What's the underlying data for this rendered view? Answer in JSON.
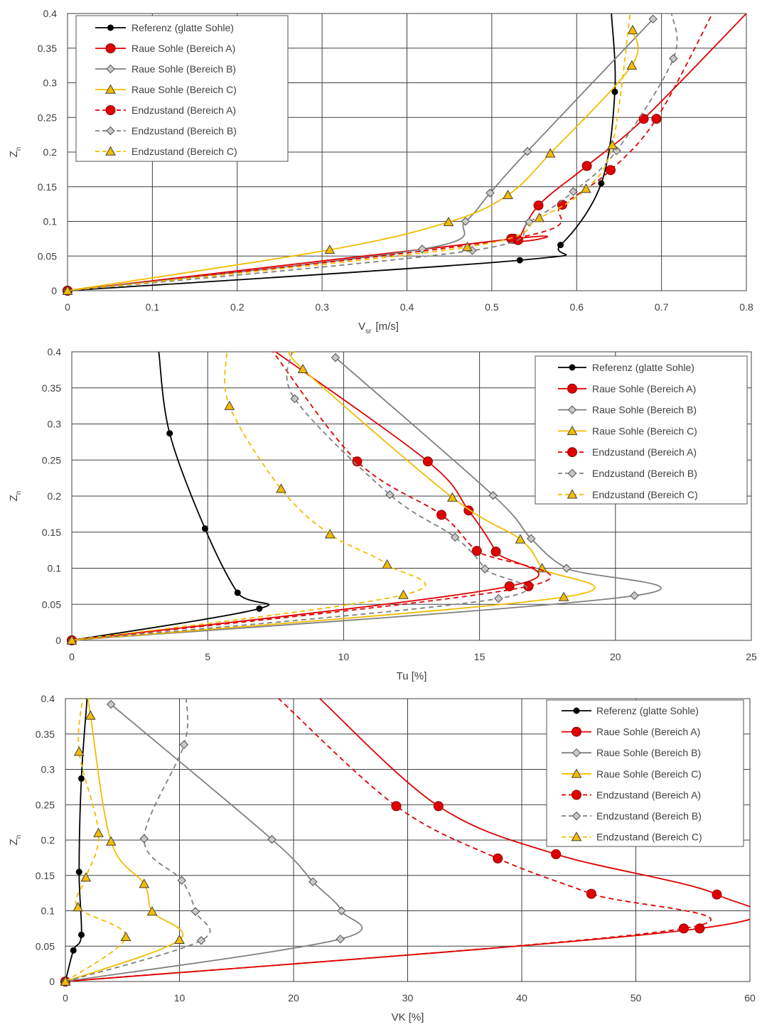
{
  "series_style": {
    "ref": {
      "color": "#000000",
      "dash": false,
      "marker": "circle-small"
    },
    "rauA": {
      "color": "#e00000",
      "dash": false,
      "marker": "circle"
    },
    "rauB": {
      "color": "#808080",
      "dash": false,
      "marker": "diamond"
    },
    "rauC": {
      "color": "#f2bc00",
      "dash": false,
      "marker": "triangle"
    },
    "endA": {
      "color": "#e00000",
      "dash": true,
      "marker": "circle"
    },
    "endB": {
      "color": "#808080",
      "dash": true,
      "marker": "diamond"
    },
    "endC": {
      "color": "#f2bc00",
      "dash": true,
      "marker": "triangle"
    }
  },
  "chart_data": [
    {
      "type": "line",
      "xlabel": "V",
      "xlabel_sub": "sr",
      "xlabel_unit": "[m/s]",
      "ylabel": "Z",
      "ylabel_sub": "n",
      "xlim": [
        0,
        0.8
      ],
      "ylim": [
        0,
        0.4
      ],
      "x_ticks": [
        "0",
        "0.1",
        "0.2",
        "0.3",
        "0.4",
        "0.5",
        "0.6",
        "0.7",
        "0.8"
      ],
      "y_ticks": [
        "0",
        "0.05",
        "0.1",
        "0.15",
        "0.2",
        "0.25",
        "0.3",
        "0.35",
        "0.4"
      ],
      "grid": true,
      "legend_position": "top-left",
      "series": [
        {
          "key": "ref",
          "name": "Referenz (glatte Sohle)",
          "x": [
            0,
            0.533,
            0.581,
            0.629,
            0.645,
            0.641
          ],
          "y": [
            0,
            0.044,
            0.066,
            0.155,
            0.287,
            0.4
          ]
        },
        {
          "key": "rauA",
          "name": "Raue Sohle (Bereich A)",
          "x": [
            0,
            0.526,
            0.531,
            0.555,
            0.612,
            0.679,
            0.8
          ],
          "y": [
            0,
            0.075,
            0.073,
            0.123,
            0.18,
            0.248,
            0.4
          ]
        },
        {
          "key": "rauB",
          "name": "Raue Sohle (Bereich B)",
          "x": [
            0,
            0.418,
            0.469,
            0.498,
            0.542,
            0.69
          ],
          "y": [
            0,
            0.06,
            0.1,
            0.141,
            0.201,
            0.392
          ]
        },
        {
          "key": "rauC",
          "name": "Raue Sohle (Bereich C)",
          "x": [
            0,
            0.309,
            0.449,
            0.519,
            0.569,
            0.665,
            0.666
          ],
          "y": [
            0,
            0.059,
            0.099,
            0.138,
            0.198,
            0.325,
            0.376
          ]
        },
        {
          "key": "endA",
          "name": "Endzustand (Bereich A)",
          "x": [
            0,
            0.523,
            0.583,
            0.64,
            0.694,
            0.76
          ],
          "y": [
            0,
            0.075,
            0.124,
            0.174,
            0.248,
            0.4
          ]
        },
        {
          "key": "endB",
          "name": "Endzustand (Bereich B)",
          "x": [
            0,
            0.477,
            0.544,
            0.596,
            0.647,
            0.714,
            0.712
          ],
          "y": [
            0,
            0.058,
            0.099,
            0.143,
            0.202,
            0.335,
            0.4
          ]
        },
        {
          "key": "endC",
          "name": "Endzustand (Bereich C)",
          "x": [
            0,
            0.471,
            0.556,
            0.611,
            0.642,
            0.663
          ],
          "y": [
            0,
            0.063,
            0.105,
            0.147,
            0.21,
            0.4
          ]
        }
      ]
    },
    {
      "type": "line",
      "xlabel": "Tu [%]",
      "ylabel": "Z",
      "ylabel_sub": "n",
      "xlim": [
        0,
        25
      ],
      "ylim": [
        0,
        0.4
      ],
      "x_ticks": [
        "0",
        "5",
        "10",
        "15",
        "20",
        "25"
      ],
      "y_ticks": [
        "0",
        "0.05",
        "0.1",
        "0.15",
        "0.2",
        "0.25",
        "0.3",
        "0.35",
        "0.4"
      ],
      "grid": true,
      "legend_position": "top-right",
      "series": [
        {
          "key": "ref",
          "name": "Referenz (glatte Sohle)",
          "x": [
            0,
            6.9,
            6.1,
            4.9,
            3.6,
            3.2
          ],
          "y": [
            0,
            0.044,
            0.066,
            0.155,
            0.287,
            0.4
          ]
        },
        {
          "key": "rauA",
          "name": "Raue Sohle (Bereich A)",
          "x": [
            0,
            16.1,
            15.6,
            14.6,
            13.1,
            7.5
          ],
          "y": [
            0,
            0.075,
            0.123,
            0.18,
            0.248,
            0.4
          ]
        },
        {
          "key": "rauB",
          "name": "Raue Sohle (Bereich B)",
          "x": [
            0,
            20.7,
            18.2,
            16.9,
            15.5,
            9.7
          ],
          "y": [
            0,
            0.062,
            0.1,
            0.141,
            0.201,
            0.392
          ]
        },
        {
          "key": "rauC",
          "name": "Raue Sohle (Bereich C)",
          "x": [
            0,
            18.1,
            17.3,
            16.5,
            14.0,
            8.5,
            8.2
          ],
          "y": [
            0,
            0.06,
            0.1,
            0.14,
            0.198,
            0.376,
            0.4
          ]
        },
        {
          "key": "endA",
          "name": "Endzustand (Bereich A)",
          "x": [
            0,
            16.8,
            14.9,
            13.6,
            10.5,
            7.4
          ],
          "y": [
            0,
            0.075,
            0.124,
            0.174,
            0.248,
            0.4
          ]
        },
        {
          "key": "endB",
          "name": "Endzustand (Bereich B)",
          "x": [
            0,
            15.7,
            15.2,
            14.1,
            11.7,
            8.2,
            8.1
          ],
          "y": [
            0,
            0.058,
            0.099,
            0.143,
            0.202,
            0.335,
            0.4
          ]
        },
        {
          "key": "endC",
          "name": "Endzustand (Bereich C)",
          "x": [
            0,
            12.2,
            11.6,
            9.5,
            7.7,
            5.8,
            5.7
          ],
          "y": [
            0,
            0.063,
            0.105,
            0.147,
            0.21,
            0.325,
            0.4
          ]
        }
      ]
    },
    {
      "type": "line",
      "xlabel": "VK [%]",
      "ylabel": "Z",
      "ylabel_sub": "n",
      "xlim": [
        0,
        60
      ],
      "ylim": [
        0,
        0.4
      ],
      "x_ticks": [
        "0",
        "10",
        "20",
        "30",
        "40",
        "50",
        "60"
      ],
      "y_ticks": [
        "0",
        "0.05",
        "0.1",
        "0.15",
        "0.2",
        "0.25",
        "0.3",
        "0.35",
        "0.4"
      ],
      "grid": true,
      "legend_position": "top-right",
      "series": [
        {
          "key": "ref",
          "name": "Referenz (glatte Sohle)",
          "x": [
            0,
            0.7,
            1.4,
            1.2,
            1.4,
            1.9
          ],
          "y": [
            0,
            0.044,
            0.066,
            0.155,
            0.287,
            0.4
          ]
        },
        {
          "key": "rauA",
          "name": "Raue Sohle (Bereich A)",
          "x": [
            0,
            55.6,
            57.1,
            43.0,
            32.7,
            22.3
          ],
          "y": [
            0,
            0.075,
            0.123,
            0.18,
            0.248,
            0.4
          ]
        },
        {
          "key": "rauB",
          "name": "Raue Sohle (Bereich B)",
          "x": [
            0,
            24.1,
            24.2,
            21.7,
            18.1,
            4.0
          ],
          "y": [
            0,
            0.06,
            0.1,
            0.141,
            0.201,
            0.392
          ]
        },
        {
          "key": "rauC",
          "name": "Raue Sohle (Bereich C)",
          "x": [
            0,
            10.0,
            7.6,
            6.9,
            4.0,
            2.2,
            2.0
          ],
          "y": [
            0,
            0.059,
            0.099,
            0.138,
            0.198,
            0.376,
            0.4
          ]
        },
        {
          "key": "endA",
          "name": "Endzustand (Bereich A)",
          "x": [
            0,
            54.2,
            46.1,
            37.9,
            29.0,
            18.7
          ],
          "y": [
            0,
            0.075,
            0.124,
            0.174,
            0.248,
            0.4
          ]
        },
        {
          "key": "endB",
          "name": "Endzustand (Bereich B)",
          "x": [
            0,
            11.9,
            11.4,
            10.2,
            6.9,
            10.4,
            10.6
          ],
          "y": [
            0,
            0.058,
            0.099,
            0.143,
            0.202,
            0.335,
            0.4
          ]
        },
        {
          "key": "endC",
          "name": "Endzustand (Bereich C)",
          "x": [
            0,
            5.3,
            1.1,
            1.8,
            2.9,
            1.2,
            1.5
          ],
          "y": [
            0,
            0.063,
            0.105,
            0.147,
            0.21,
            0.325,
            0.4
          ]
        }
      ]
    }
  ]
}
